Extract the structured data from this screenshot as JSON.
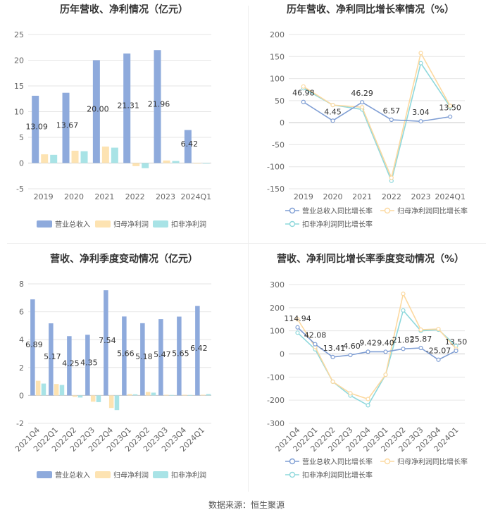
{
  "colors": {
    "revenue": "#8eaadc",
    "parent_net": "#fde3b2",
    "deducted_net": "#a8e3e6",
    "grid": "#e6e6e6",
    "axis_text": "#666666",
    "title": "#333333"
  },
  "source_text": "数据来源：恒生聚源",
  "chart_data": [
    {
      "id": "annual-amount",
      "type": "bar",
      "title": "历年营收、净利情况（亿元）",
      "categories": [
        "2019",
        "2020",
        "2021",
        "2022",
        "2023",
        "2024Q1"
      ],
      "ylim": [
        -5,
        25
      ],
      "yticks": [
        -5,
        0,
        5,
        10,
        15,
        20,
        25
      ],
      "series": [
        {
          "name": "营业总收入",
          "values": [
            13.09,
            13.67,
            20.0,
            21.31,
            21.96,
            6.42
          ],
          "labels": [
            "13.09",
            "13.67",
            "20.00",
            "21.31",
            "21.96",
            "6.42"
          ]
        },
        {
          "name": "归母净利润",
          "values": [
            1.7,
            2.4,
            3.2,
            -0.6,
            0.5,
            -0.1
          ]
        },
        {
          "name": "扣非净利润",
          "values": [
            1.6,
            2.3,
            3.0,
            -1.0,
            0.4,
            -0.1
          ]
        }
      ]
    },
    {
      "id": "annual-growth",
      "type": "line",
      "title": "历年营收、净利同比增长率情况（%）",
      "categories": [
        "2019",
        "2020",
        "2021",
        "2022",
        "2023",
        "2024Q1"
      ],
      "ylim": [
        -150,
        200
      ],
      "yticks": [
        -150,
        -100,
        -50,
        0,
        50,
        100,
        150,
        200
      ],
      "series": [
        {
          "name": "营业总收入同比增长率",
          "values": [
            46.98,
            4.45,
            46.29,
            6.57,
            3.04,
            13.5
          ],
          "labels": [
            "46.98",
            "4.45",
            "46.29",
            "6.57",
            "3.04",
            "13.50"
          ]
        },
        {
          "name": "归母净利润同比增长率",
          "values": [
            82,
            40,
            35,
            -125,
            158,
            38
          ]
        },
        {
          "name": "扣非净利润同比增长率",
          "values": [
            78,
            40,
            30,
            -132,
            135,
            36
          ]
        }
      ]
    },
    {
      "id": "quarterly-amount",
      "type": "bar",
      "title": "营收、净利季度变动情况（亿元）",
      "categories": [
        "2021Q4",
        "2022Q1",
        "2022Q2",
        "2022Q3",
        "2022Q4",
        "2023Q1",
        "2023Q2",
        "2023Q3",
        "2023Q4",
        "2024Q1"
      ],
      "ylim": [
        -2,
        8
      ],
      "yticks": [
        -2,
        0,
        2,
        4,
        6,
        8
      ],
      "series": [
        {
          "name": "营业总收入",
          "values": [
            6.89,
            5.17,
            4.25,
            4.35,
            7.54,
            5.66,
            5.18,
            5.47,
            5.65,
            6.42
          ],
          "labels": [
            "6.89",
            "5.17",
            "4.25",
            "4.35",
            "7.54",
            "5.66",
            "5.18",
            "5.47",
            "5.65",
            "6.42"
          ]
        },
        {
          "name": "归母净利润",
          "values": [
            1.05,
            0.82,
            -0.1,
            -0.45,
            -0.9,
            0.1,
            0.25,
            0.05,
            0.05,
            0.05
          ]
        },
        {
          "name": "扣非净利润",
          "values": [
            0.85,
            0.75,
            -0.15,
            -0.48,
            -1.05,
            0.08,
            0.2,
            0.03,
            0.03,
            0.1
          ]
        }
      ]
    },
    {
      "id": "quarterly-growth",
      "type": "line",
      "title": "营收、净利同比增长率季度变动情况（%）",
      "categories": [
        "2021Q4",
        "2022Q1",
        "2022Q2",
        "2022Q3",
        "2022Q4",
        "2023Q1",
        "2023Q2",
        "2023Q3",
        "2023Q4",
        "2024Q1"
      ],
      "ylim": [
        -300,
        300
      ],
      "yticks": [
        -300,
        -200,
        -100,
        0,
        100,
        200,
        300
      ],
      "series": [
        {
          "name": "营业总收入同比增长率",
          "values": [
            114.94,
            42.08,
            -13.41,
            -4.6,
            9.42,
            9.4,
            21.83,
            25.87,
            -25.07,
            13.5
          ],
          "labels": [
            "114.94",
            "42.08",
            "-13.41",
            "-4.60",
            "9.42",
            "9.40",
            "21.83",
            "25.87",
            "-25.07",
            "13.50"
          ]
        },
        {
          "name": "归母净利润同比增长率",
          "values": [
            150,
            30,
            -120,
            -170,
            -195,
            -90,
            260,
            105,
            108,
            22
          ]
        },
        {
          "name": "扣非净利润同比增长率",
          "values": [
            92,
            20,
            -120,
            -180,
            -222,
            -90,
            188,
            100,
            105,
            35
          ]
        }
      ]
    }
  ]
}
